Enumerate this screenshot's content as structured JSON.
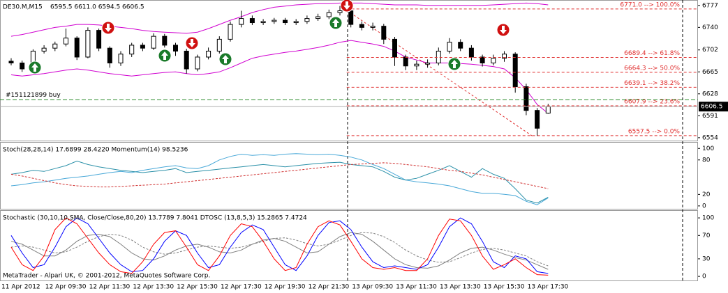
{
  "chart_data": [
    {
      "type": "candlestick",
      "title": "DE30.M,M15",
      "subtitle": "6595.5 6611.0 6594.5 6606.5",
      "categories": [
        "11 Apr 2012",
        null,
        null,
        null,
        "12 Apr 09:30",
        null,
        null,
        null,
        "12 Apr 11:30",
        null,
        null,
        null,
        "12 Apr 13:30",
        null,
        null,
        null,
        "12 Apr 15:30",
        null,
        null,
        null,
        "12 Apr 17:30",
        null,
        null,
        null,
        "12 Apr 19:30",
        null,
        null,
        null,
        "12 Apr 21:30",
        null,
        null,
        null,
        "13 Apr 09:30",
        null,
        null,
        null,
        "13 Apr 11:30",
        null,
        null,
        null,
        "13 Apr 13:30",
        null,
        null,
        null,
        "13 Apr 15:30",
        null,
        null,
        null,
        "13 Apr 17:30",
        null
      ],
      "open": [
        6683,
        6680,
        6672,
        6700,
        6705,
        6712,
        6722,
        6690,
        6735,
        6705,
        6680,
        6695,
        6710,
        6705,
        6725,
        6710,
        6700,
        6670,
        6690,
        6700,
        6720,
        6745,
        6755,
        6748,
        6750,
        6752,
        6748,
        6750,
        6755,
        6758,
        6765,
        6768,
        6745,
        6740,
        6742,
        6720,
        6690,
        6675,
        6678,
        6680,
        6700,
        6715,
        6705,
        6690,
        6680,
        6688,
        6695,
        6640,
        6600,
        6595.5
      ],
      "high": [
        6688,
        6684,
        6703,
        6710,
        6716,
        6738,
        6725,
        6740,
        6738,
        6708,
        6700,
        6714,
        6714,
        6730,
        6729,
        6714,
        6704,
        6694,
        6706,
        6725,
        6750,
        6768,
        6760,
        6754,
        6756,
        6756,
        6754,
        6760,
        6763,
        6770,
        6776,
        6772,
        6750,
        6748,
        6746,
        6724,
        6694,
        6684,
        6686,
        6706,
        6722,
        6720,
        6710,
        6694,
        6694,
        6700,
        6698,
        6645,
        6604,
        6611
      ],
      "low": [
        6676,
        6665,
        6668,
        6696,
        6700,
        6708,
        6685,
        6688,
        6700,
        6672,
        6675,
        6690,
        6700,
        6702,
        6706,
        6692,
        6662,
        6666,
        6686,
        6696,
        6716,
        6740,
        6744,
        6744,
        6746,
        6744,
        6744,
        6746,
        6751,
        6754,
        6760,
        6740,
        6735,
        6735,
        6712,
        6675,
        6668,
        6668,
        6672,
        6676,
        6696,
        6700,
        6684,
        6674,
        6676,
        6682,
        6630,
        6592,
        6557,
        6594.5
      ],
      "close": [
        6680,
        6670,
        6700,
        6705,
        6712,
        6722,
        6690,
        6735,
        6705,
        6680,
        6695,
        6710,
        6705,
        6725,
        6710,
        6700,
        6670,
        6690,
        6700,
        6720,
        6745,
        6755,
        6748,
        6750,
        6752,
        6748,
        6750,
        6755,
        6758,
        6765,
        6768,
        6745,
        6740,
        6742,
        6720,
        6690,
        6675,
        6678,
        6680,
        6700,
        6715,
        6705,
        6690,
        6680,
        6688,
        6695,
        6640,
        6600,
        6570,
        6606.5
      ],
      "up_color": "#ffffff",
      "down_color": "#000000",
      "series": [
        {
          "color": "#d000d0",
          "values": [
            6725,
            6728,
            6732,
            6736,
            6740,
            6742,
            6745,
            6745,
            6744,
            6742,
            6740,
            6738,
            6735,
            6733,
            6732,
            6731,
            6730,
            6732,
            6738,
            6745,
            6752,
            6758,
            6765,
            6770,
            6774,
            6776,
            6778,
            6779,
            6780,
            6780,
            6781,
            6781,
            6781,
            6780,
            6779,
            6778,
            6778,
            6778,
            6777,
            6777,
            6777,
            6777,
            6777,
            6777,
            6778,
            6779,
            6780,
            6781,
            6780,
            6778
          ]
        },
        {
          "color": "#d000d0",
          "values": [
            6660,
            6658,
            6660,
            6662,
            6665,
            6668,
            6670,
            6668,
            6665,
            6662,
            6660,
            6658,
            6660,
            6662,
            6664,
            6665,
            6662,
            6660,
            6662,
            6665,
            6672,
            6680,
            6688,
            6692,
            6695,
            6698,
            6700,
            6703,
            6706,
            6710,
            6715,
            6718,
            6715,
            6712,
            6708,
            6700,
            6690,
            6685,
            6680,
            6680,
            6680,
            6679,
            6678,
            6676,
            6674,
            6670,
            6655,
            6635,
            6610,
            6595
          ]
        }
      ],
      "ylim": [
        6548,
        6785
      ],
      "yticks": [
        6554,
        6591,
        6628,
        6665,
        6702,
        6740,
        6777
      ],
      "grid": false,
      "last_price": 6606.5,
      "levels": [
        {
          "value": 6771.0,
          "label": "6771.0 --> 100.0%"
        },
        {
          "value": 6689.4,
          "label": "6689.4 --> 61.8%"
        },
        {
          "value": 6664.3,
          "label": "6664.3 --> 50.0%"
        },
        {
          "value": 6639.1,
          "label": "6639.1 --> 38.2%"
        },
        {
          "value": 6607.9,
          "label": "6607.9 --> 23.6%"
        },
        {
          "value": 6557.5,
          "label": "6557.5 --> 0.0%"
        }
      ],
      "order": {
        "value": 6618,
        "label": "#151121899 buy"
      }
    },
    {
      "type": "line",
      "title": "Stoch(28,28,14) 17.6899 28.4220  Momentum(14) 98.5236",
      "series": [
        {
          "color": "#48a8d8",
          "style": "solid",
          "values": [
            35,
            37,
            40,
            42,
            45,
            48,
            50,
            52,
            55,
            58,
            60,
            58,
            62,
            65,
            68,
            70,
            66,
            65,
            70,
            80,
            86,
            90,
            88,
            89,
            88,
            90,
            91,
            90,
            89,
            90,
            88,
            85,
            80,
            72,
            65,
            55,
            45,
            42,
            40,
            38,
            35,
            30,
            25,
            22,
            22,
            20,
            18,
            8,
            2,
            14
          ]
        },
        {
          "color": "#2a90a8",
          "style": "solid",
          "values": [
            55,
            58,
            62,
            60,
            65,
            70,
            78,
            72,
            68,
            65,
            62,
            60,
            58,
            60,
            62,
            65,
            58,
            60,
            62,
            64,
            66,
            68,
            70,
            72,
            70,
            68,
            70,
            72,
            74,
            75,
            76,
            72,
            70,
            68,
            60,
            50,
            45,
            48,
            55,
            62,
            70,
            60,
            50,
            65,
            55,
            48,
            30,
            10,
            5,
            15
          ]
        },
        {
          "color": "#d03030",
          "style": "dashed",
          "values": [
            55,
            52,
            48,
            44,
            40,
            37,
            35,
            34,
            33,
            33,
            34,
            35,
            36,
            37,
            38,
            40,
            42,
            44,
            46,
            48,
            50,
            52,
            54,
            56,
            58,
            60,
            62,
            64,
            66,
            68,
            70,
            72,
            73,
            74,
            75,
            74,
            72,
            70,
            68,
            65,
            62,
            60,
            57,
            54,
            50,
            46,
            42,
            38,
            34,
            30
          ]
        }
      ],
      "ylim": [
        -5,
        110
      ],
      "yticks": [
        0,
        20,
        80,
        100
      ],
      "grid": false
    },
    {
      "type": "line",
      "title": "Stochastic (30,10,10,SMA, Close/Close,80,20) 13.7789 7.8041  DTOSC (13,8,5,3) 15.2865 7.4724",
      "series": [
        {
          "color": "#808080",
          "style": "solid",
          "values": [
            60,
            55,
            45,
            35,
            35,
            45,
            60,
            70,
            72,
            68,
            55,
            40,
            30,
            28,
            35,
            45,
            52,
            55,
            50,
            42,
            40,
            45,
            55,
            62,
            65,
            60,
            50,
            40,
            42,
            55,
            68,
            75,
            72,
            60,
            45,
            30,
            20,
            15,
            14,
            18,
            28,
            40,
            48,
            50,
            45,
            38,
            32,
            28,
            20,
            12
          ]
        },
        {
          "color": "#808080",
          "style": "dashed",
          "values": [
            50,
            52,
            50,
            45,
            40,
            42,
            50,
            60,
            68,
            72,
            70,
            62,
            50,
            42,
            38,
            40,
            45,
            50,
            52,
            50,
            48,
            50,
            55,
            60,
            65,
            66,
            62,
            56,
            52,
            55,
            62,
            70,
            75,
            74,
            68,
            58,
            45,
            35,
            28,
            24,
            25,
            32,
            40,
            46,
            48,
            45,
            40,
            35,
            25,
            18
          ]
        },
        {
          "color": "#0000ff",
          "style": "solid",
          "values": [
            70,
            40,
            15,
            20,
            50,
            85,
            100,
            90,
            65,
            40,
            20,
            8,
            10,
            30,
            60,
            78,
            70,
            40,
            15,
            20,
            50,
            75,
            88,
            80,
            50,
            20,
            10,
            35,
            70,
            92,
            95,
            80,
            50,
            25,
            15,
            18,
            15,
            12,
            20,
            50,
            85,
            100,
            90,
            60,
            25,
            15,
            35,
            30,
            8,
            5
          ]
        },
        {
          "color": "#ff0000",
          "style": "solid",
          "values": [
            50,
            20,
            10,
            35,
            80,
            100,
            90,
            65,
            40,
            20,
            8,
            5,
            25,
            55,
            75,
            78,
            50,
            20,
            10,
            35,
            70,
            90,
            85,
            60,
            30,
            10,
            15,
            55,
            85,
            95,
            88,
            60,
            30,
            15,
            12,
            15,
            10,
            10,
            30,
            70,
            98,
            95,
            70,
            35,
            12,
            20,
            30,
            15,
            3,
            2
          ]
        }
      ],
      "ylim": [
        -7,
        112
      ],
      "yticks": [
        0,
        30,
        70,
        100
      ],
      "grid": false
    }
  ],
  "footer": "MetaTrader - Alpari UK, © 2001-2012, MetaQuotes Software Corp."
}
